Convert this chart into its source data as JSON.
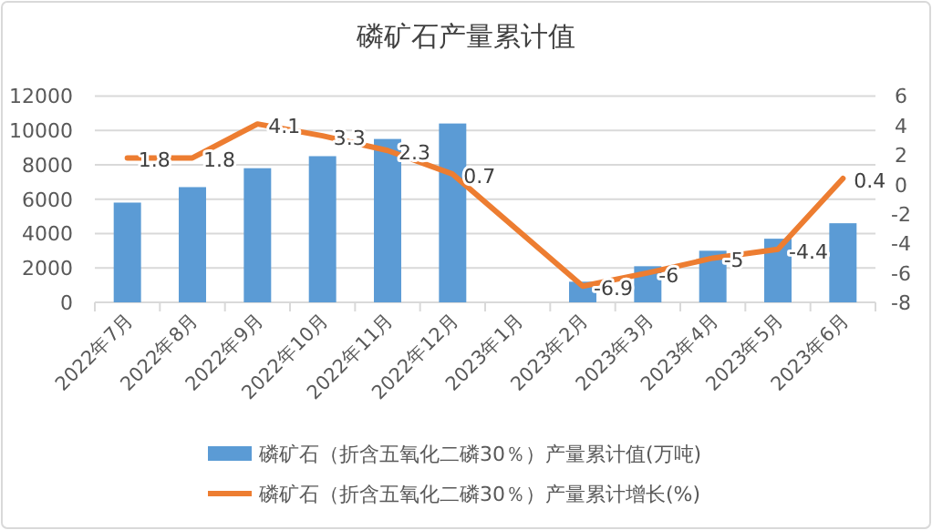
{
  "chart_data": {
    "type": "bar",
    "title": "磷矿石产量累计值",
    "categories": [
      "2022年7月",
      "2022年8月",
      "2022年9月",
      "2022年10月",
      "2022年11月",
      "2022年12月",
      "2023年1月",
      "2023年2月",
      "2023年3月",
      "2023年4月",
      "2023年5月",
      "2023年6月"
    ],
    "series": [
      {
        "name": "磷矿石（折含五氧化二磷30％）产量累计值(万吨)",
        "color": "#5b9bd5",
        "values": [
          5800,
          6700,
          7800,
          8500,
          9500,
          10400,
          null,
          1200,
          2100,
          3000,
          3700,
          4600
        ]
      },
      {
        "name": "磷矿石（折含五氧化二磷30％）产量累计增长(%)",
        "type": "line",
        "axis": "y2",
        "color": "#ed7d31",
        "values": [
          1.8,
          1.8,
          4.1,
          3.3,
          2.3,
          0.7,
          null,
          -6.9,
          -6,
          -5,
          -4.4,
          0.4
        ],
        "value_labels": [
          "1.8",
          "1.8",
          "4.1",
          "3.3",
          "2.3",
          "0.7",
          null,
          "-6.9",
          "-6",
          "-5",
          "-4.4",
          "0.4"
        ]
      }
    ],
    "ylim": [
      0,
      12000
    ],
    "yticks": [
      0,
      2000,
      4000,
      6000,
      8000,
      10000,
      12000
    ],
    "y2lim": [
      -8,
      6
    ],
    "y2ticks": [
      -8,
      -6,
      -4,
      -2,
      0,
      2,
      4,
      6
    ],
    "grid": "y",
    "legend": "bottom"
  }
}
